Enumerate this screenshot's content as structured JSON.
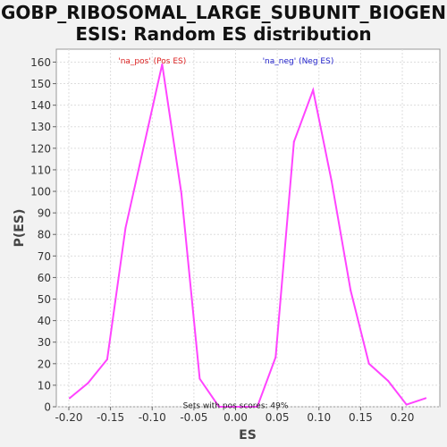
{
  "title_line1": "GOBP_RIBOSOMAL_LARGE_SUBUNIT_BIOGEN",
  "title_line2": "ESIS: Random ES distribution",
  "chart_data": {
    "type": "line",
    "title": "GOBP_RIBOSOMAL_LARGE_SUBUNIT_BIOGENESIS: Random ES distribution",
    "xlabel": "ES",
    "ylabel": "P(ES)",
    "xlim": [
      -0.215,
      0.245
    ],
    "ylim": [
      0,
      166
    ],
    "xticks": [
      -0.2,
      -0.15,
      -0.1,
      -0.05,
      0.0,
      0.05,
      0.1,
      0.15,
      0.2
    ],
    "xtick_labels": [
      "-0.20",
      "-0.15",
      "-0.10",
      "-0.05",
      "0.00",
      "0.05",
      "0.10",
      "0.15",
      "0.20"
    ],
    "yticks": [
      0,
      10,
      20,
      30,
      40,
      50,
      60,
      70,
      80,
      90,
      100,
      110,
      120,
      130,
      140,
      150,
      160
    ],
    "grid": true,
    "series": [
      {
        "color": "#ff44ff",
        "x": [
          -0.199,
          -0.177,
          -0.154,
          -0.132,
          -0.088,
          -0.065,
          -0.043,
          -0.02,
          0.003,
          0.026,
          0.048,
          0.07,
          0.093,
          0.115,
          0.138,
          0.16,
          0.183,
          0.205,
          0.228
        ],
        "y": [
          4,
          11,
          22,
          83,
          159,
          99,
          13,
          0,
          0,
          0,
          23,
          123,
          147,
          105,
          54,
          20,
          12,
          1,
          4
        ]
      }
    ],
    "annotations": [
      {
        "text": "'na_pos' (Pos ES)",
        "color": "#dd2222",
        "x": -0.1,
        "y": 161
      },
      {
        "text": "'na_neg' (Neg ES)",
        "color": "#2222cc",
        "x": 0.075,
        "y": 161
      },
      {
        "text": "Sets with pos scores: 49%",
        "color": "#222222",
        "x": 0.0,
        "y": 1
      }
    ]
  }
}
